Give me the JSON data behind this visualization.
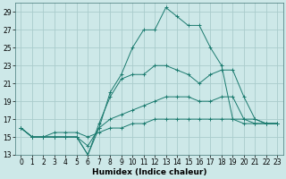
{
  "xlabel": "Humidex (Indice chaleur)",
  "background_color": "#cde8e8",
  "grid_color": "#aacccc",
  "line_color": "#1a7a6e",
  "xlim": [
    -0.5,
    23.5
  ],
  "ylim": [
    13,
    30
  ],
  "xticks": [
    0,
    1,
    2,
    3,
    4,
    5,
    6,
    7,
    8,
    9,
    10,
    11,
    12,
    13,
    14,
    15,
    16,
    17,
    18,
    19,
    20,
    21,
    22,
    23
  ],
  "yticks": [
    13,
    15,
    17,
    19,
    21,
    23,
    25,
    27,
    29
  ],
  "series_x": [
    0,
    1,
    2,
    3,
    4,
    5,
    6,
    7,
    8,
    9,
    10,
    11,
    12,
    13,
    14,
    15,
    16,
    17,
    18,
    19,
    20,
    21,
    22,
    23
  ],
  "series": [
    [
      16,
      15,
      15,
      15,
      15,
      15,
      13,
      16,
      20,
      22,
      25,
      27,
      27,
      29.5,
      28.5,
      27.5,
      27.5,
      25,
      23,
      17,
      17,
      16.5,
      16.5,
      16.5
    ],
    [
      16,
      15,
      15,
      15,
      15,
      15,
      13,
      16.5,
      19.5,
      21.5,
      22,
      22,
      23,
      23,
      22.5,
      22,
      21,
      22,
      22.5,
      22.5,
      19.5,
      17,
      16.5,
      16.5
    ],
    [
      16,
      15,
      15,
      15,
      15,
      15,
      14,
      16,
      17,
      17.5,
      18,
      18.5,
      19,
      19.5,
      19.5,
      19.5,
      19,
      19,
      19.5,
      19.5,
      17,
      17,
      16.5,
      16.5
    ],
    [
      16,
      15,
      15,
      15.5,
      15.5,
      15.5,
      15,
      15.5,
      16,
      16,
      16.5,
      16.5,
      17,
      17,
      17,
      17,
      17,
      17,
      17,
      17,
      16.5,
      16.5,
      16.5,
      16.5
    ]
  ],
  "tick_fontsize": 5.5,
  "xlabel_fontsize": 6.5
}
